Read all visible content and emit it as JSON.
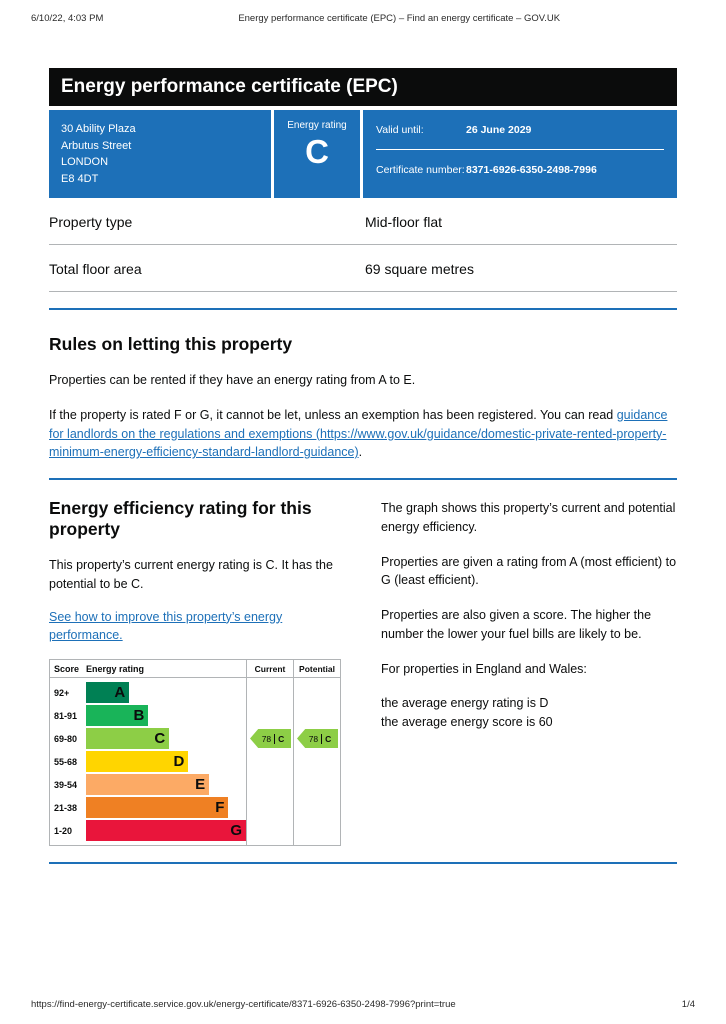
{
  "print_header": {
    "datetime": "6/10/22, 4:03 PM",
    "title": "Energy performance certificate (EPC) – Find an energy certificate – GOV.UK"
  },
  "header": {
    "title": "Energy performance certificate (EPC)"
  },
  "summary": {
    "address_lines": [
      "30 Ability Plaza",
      "Arbutus Street",
      "LONDON",
      "E8 4DT"
    ],
    "energy_rating_label": "Energy rating",
    "energy_rating": "C",
    "valid_until_label": "Valid until:",
    "valid_until": "26 June 2029",
    "certificate_number_label": "Certificate number:",
    "certificate_number": "8371-6926-6350-2498-7996"
  },
  "property_details": [
    {
      "label": "Property type",
      "value": "Mid-floor flat"
    },
    {
      "label": "Total floor area",
      "value": "69 square metres"
    }
  ],
  "rules_section": {
    "heading": "Rules on letting this property",
    "para1": "Properties can be rented if they have an energy rating from A to E.",
    "para2_before": "If the property is rated F or G, it cannot be let, unless an exemption has been registered. You can read ",
    "para2_link": "guidance for landlords on the regulations and exemptions (https://www.gov.uk/guidance/domestic-private-rented-property-minimum-energy-efficiency-standard-landlord-guidance)",
    "para2_after": "."
  },
  "rating_section": {
    "heading": "Energy efficiency rating for this property",
    "summary_para": "This property’s current energy rating is C. It has the potential to be C.",
    "improve_link": "See how to improve this property’s energy performance.",
    "right_paras": [
      "The graph shows this property’s current and potential energy efficiency.",
      "Properties are given a rating from A (most efficient) to G (least efficient).",
      "Properties are also given a score. The higher the number the lower your fuel bills are likely to be.",
      "For properties in England and Wales:"
    ],
    "average_lines": [
      "the average energy rating is D",
      "the average energy score is 60"
    ]
  },
  "chart_data": {
    "type": "bar",
    "title": "Energy efficiency rating",
    "columns": [
      "Score",
      "Energy rating",
      "Current",
      "Potential"
    ],
    "bands": [
      {
        "score": "92+",
        "letter": "A",
        "color": "#008054",
        "width_pct": 27
      },
      {
        "score": "81-91",
        "letter": "B",
        "color": "#19b459",
        "width_pct": 39
      },
      {
        "score": "69-80",
        "letter": "C",
        "color": "#8dce46",
        "width_pct": 52
      },
      {
        "score": "55-68",
        "letter": "D",
        "color": "#ffd500",
        "width_pct": 64
      },
      {
        "score": "39-54",
        "letter": "E",
        "color": "#fcaa65",
        "width_pct": 77
      },
      {
        "score": "21-38",
        "letter": "F",
        "color": "#ef8023",
        "width_pct": 89
      },
      {
        "score": "1-20",
        "letter": "G",
        "color": "#e9153b",
        "width_pct": 100
      }
    ],
    "current": {
      "score": "78",
      "letter": "C",
      "color": "#8dce46",
      "band_index": 2
    },
    "potential": {
      "score": "78",
      "letter": "C",
      "color": "#8dce46",
      "band_index": 2
    }
  },
  "colors": {
    "govuk_blue": "#1d70b8",
    "text_black": "#0b0c0c",
    "border_gray": "#b1b4b6"
  },
  "print_footer": {
    "url": "https://find-energy-certificate.service.gov.uk/energy-certificate/8371-6926-6350-2498-7996?print=true",
    "page": "1/4"
  }
}
